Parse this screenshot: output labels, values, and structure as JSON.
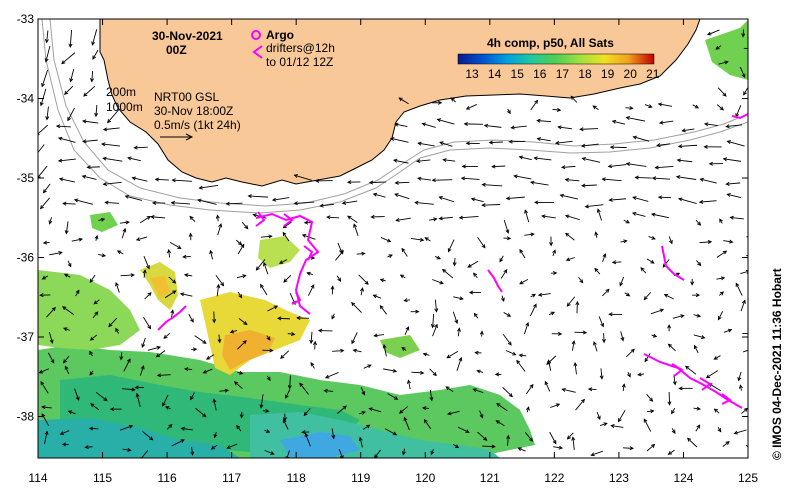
{
  "header": {
    "date": "30-Nov-2021",
    "time": "00Z",
    "argo_label": "Argo",
    "drifters_line1": "drifters@12h",
    "drifters_line2": "to 01/12 12Z"
  },
  "legend": {
    "title": "4h comp, p50, All Sats",
    "ticks": [
      "13",
      "14",
      "15",
      "16",
      "17",
      "18",
      "19",
      "20",
      "21"
    ],
    "colors": [
      "#0a1a8c",
      "#0050d0",
      "#00a0e0",
      "#20c8a0",
      "#50d050",
      "#a0e040",
      "#f0e020",
      "#f0a020",
      "#e04010",
      "#b00000"
    ]
  },
  "isobaths": {
    "line1": "200m",
    "line2": "1000m"
  },
  "info": {
    "line1": "NRT00 GSL",
    "line2": "30-Nov 18:00Z",
    "line3": "0.5m/s (1kt 24h)"
  },
  "axes": {
    "lon_ticks": [
      "114",
      "115",
      "116",
      "117",
      "118",
      "119",
      "120",
      "121",
      "122",
      "123",
      "124",
      "125"
    ],
    "lat_ticks": [
      "-33",
      "-34",
      "-35",
      "-36",
      "-37",
      "-38"
    ]
  },
  "credit": "© IMOS 04-Dec-2021 11:36 Hobart",
  "colors": {
    "land": "#f8c898",
    "drifter": "#ff00ff",
    "arrow": "#000000",
    "isobath": "#a0a0a0"
  }
}
